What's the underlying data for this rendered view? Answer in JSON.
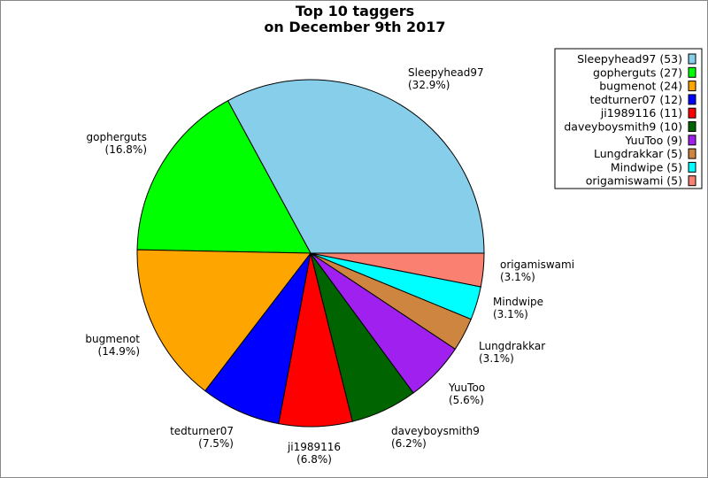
{
  "chart_data": {
    "type": "pie",
    "title": [
      "Top 10 taggers",
      "on December 9th 2017"
    ],
    "slices": [
      {
        "name": "Sleepyhead97",
        "value": 53,
        "percent": "(32.9%)",
        "legend": "Sleepyhead97 (53)",
        "color": "#87ceeb"
      },
      {
        "name": "gopherguts",
        "value": 27,
        "percent": "(16.8%)",
        "legend": "gopherguts (27)",
        "color": "#00ff00"
      },
      {
        "name": "bugmenot",
        "value": 24,
        "percent": "(14.9%)",
        "legend": "bugmenot (24)",
        "color": "#ffa500"
      },
      {
        "name": "tedturner07",
        "value": 12,
        "percent": "(7.5%)",
        "legend": "tedturner07 (12)",
        "color": "#0000ff"
      },
      {
        "name": "ji1989116",
        "value": 11,
        "percent": "(6.8%)",
        "legend": "ji1989116 (11)",
        "color": "#ff0000"
      },
      {
        "name": "daveyboysmith9",
        "value": 10,
        "percent": "(6.2%)",
        "legend": "daveyboysmith9 (10)",
        "color": "#006400"
      },
      {
        "name": "YuuToo",
        "value": 9,
        "percent": "(5.6%)",
        "legend": "YuuToo (9)",
        "color": "#a020f0"
      },
      {
        "name": "Lungdrakkar",
        "value": 5,
        "percent": "(3.1%)",
        "legend": "Lungdrakkar (5)",
        "color": "#cd853f"
      },
      {
        "name": "Mindwipe",
        "value": 5,
        "percent": "(3.1%)",
        "legend": "Mindwipe (5)",
        "color": "#00ffff"
      },
      {
        "name": "origamiswami",
        "value": 5,
        "percent": "(3.1%)",
        "legend": "origamiswami (5)",
        "color": "#fa8072"
      }
    ],
    "legend_position": "top-right",
    "start_angle_deg": 0,
    "direction": "counterclockwise"
  }
}
